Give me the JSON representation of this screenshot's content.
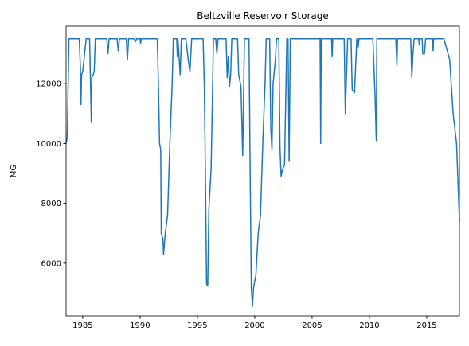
{
  "chart_data": {
    "type": "line",
    "title": "Beltzville Reservoir Storage",
    "y_label": "MG",
    "x": [
      1983.55,
      1983.65,
      1983.8,
      1984.7,
      1984.8,
      1984.85,
      1984.9,
      1985.0,
      1985.3,
      1985.6,
      1985.75,
      1985.8,
      1986.0,
      1986.1,
      1987.1,
      1987.2,
      1987.3,
      1988.0,
      1988.1,
      1988.2,
      1988.8,
      1988.9,
      1989.0,
      1989.5,
      1989.6,
      1989.7,
      1990.0,
      1990.05,
      1990.1,
      1991.5,
      1991.6,
      1991.7,
      1991.8,
      1991.85,
      1992.0,
      1992.05,
      1992.2,
      1992.4,
      1992.6,
      1992.8,
      1992.9,
      1993.2,
      1993.25,
      1993.3,
      1993.5,
      1993.6,
      1994.0,
      1994.2,
      1994.35,
      1994.5,
      1995.5,
      1995.6,
      1995.7,
      1995.8,
      1995.9,
      1996.0,
      1996.2,
      1996.4,
      1996.6,
      1996.7,
      1996.8,
      1997.5,
      1997.6,
      1997.7,
      1997.8,
      1997.9,
      1998.0,
      1998.5,
      1998.6,
      1998.8,
      1998.95,
      1999.1,
      1999.5,
      1999.6,
      1999.7,
      1999.8,
      1999.9,
      2000.1,
      2000.3,
      2000.5,
      2000.7,
      2000.9,
      2001.0,
      2001.3,
      2001.4,
      2001.5,
      2001.6,
      2001.8,
      2001.9,
      2002.1,
      2002.2,
      2002.3,
      2002.4,
      2002.6,
      2002.8,
      2002.9,
      2003.0,
      2003.1,
      2005.7,
      2005.75,
      2005.8,
      2006.7,
      2006.75,
      2006.8,
      2007.8,
      2007.9,
      2008.1,
      2008.4,
      2008.5,
      2008.7,
      2008.9,
      2009.0,
      2009.1,
      2010.3,
      2010.5,
      2010.6,
      2010.65,
      2012.3,
      2012.4,
      2012.45,
      2013.6,
      2013.7,
      2013.8,
      2013.9,
      2014.3,
      2014.35,
      2014.4,
      2014.6,
      2014.65,
      2014.8,
      2014.9,
      2015.5,
      2015.55,
      2015.6,
      2016.5,
      2017.0,
      2017.3,
      2017.6,
      2017.85
    ],
    "series": [
      {
        "name": "Beltzville",
        "color": "#1f77b4",
        "values": [
          10000,
          10200,
          13500,
          13500,
          12500,
          11300,
          12300,
          12400,
          13500,
          13500,
          10700,
          12200,
          12400,
          13500,
          13500,
          13000,
          13500,
          13500,
          13100,
          13500,
          13500,
          12800,
          13500,
          13500,
          13400,
          13500,
          13500,
          13350,
          13500,
          13500,
          12000,
          10000,
          9800,
          7000,
          6800,
          6300,
          7000,
          7600,
          10000,
          12000,
          13500,
          13500,
          12900,
          13500,
          12300,
          13500,
          13500,
          12800,
          12400,
          13500,
          13500,
          12000,
          9000,
          5300,
          5250,
          7800,
          9200,
          13500,
          13500,
          13000,
          13500,
          13500,
          12200,
          12900,
          11900,
          12300,
          13500,
          13500,
          12300,
          11900,
          9600,
          13500,
          13500,
          9000,
          5200,
          4550,
          5200,
          5600,
          7000,
          7600,
          10000,
          12000,
          13500,
          13500,
          10500,
          9800,
          12000,
          12800,
          13500,
          13500,
          9900,
          8900,
          9100,
          9300,
          13500,
          13500,
          9400,
          13500,
          13500,
          10000,
          13500,
          13500,
          12900,
          13500,
          13500,
          11000,
          13500,
          13500,
          11800,
          11700,
          13500,
          13200,
          13500,
          13500,
          11500,
          10100,
          13500,
          13500,
          12600,
          13500,
          13500,
          12200,
          13000,
          13500,
          13500,
          13300,
          13500,
          13500,
          13000,
          13000,
          13500,
          13500,
          13100,
          13500,
          13500,
          12800,
          11000,
          10000,
          7400
        ]
      }
    ],
    "xlim": [
      1983.55,
      2017.85
    ],
    "xticks": [
      1985,
      1990,
      1995,
      2000,
      2005,
      2010,
      2015
    ],
    "ylim": [
      4240,
      13920
    ],
    "yticks": [
      6000,
      8000,
      10000,
      12000
    ],
    "grid": false
  }
}
